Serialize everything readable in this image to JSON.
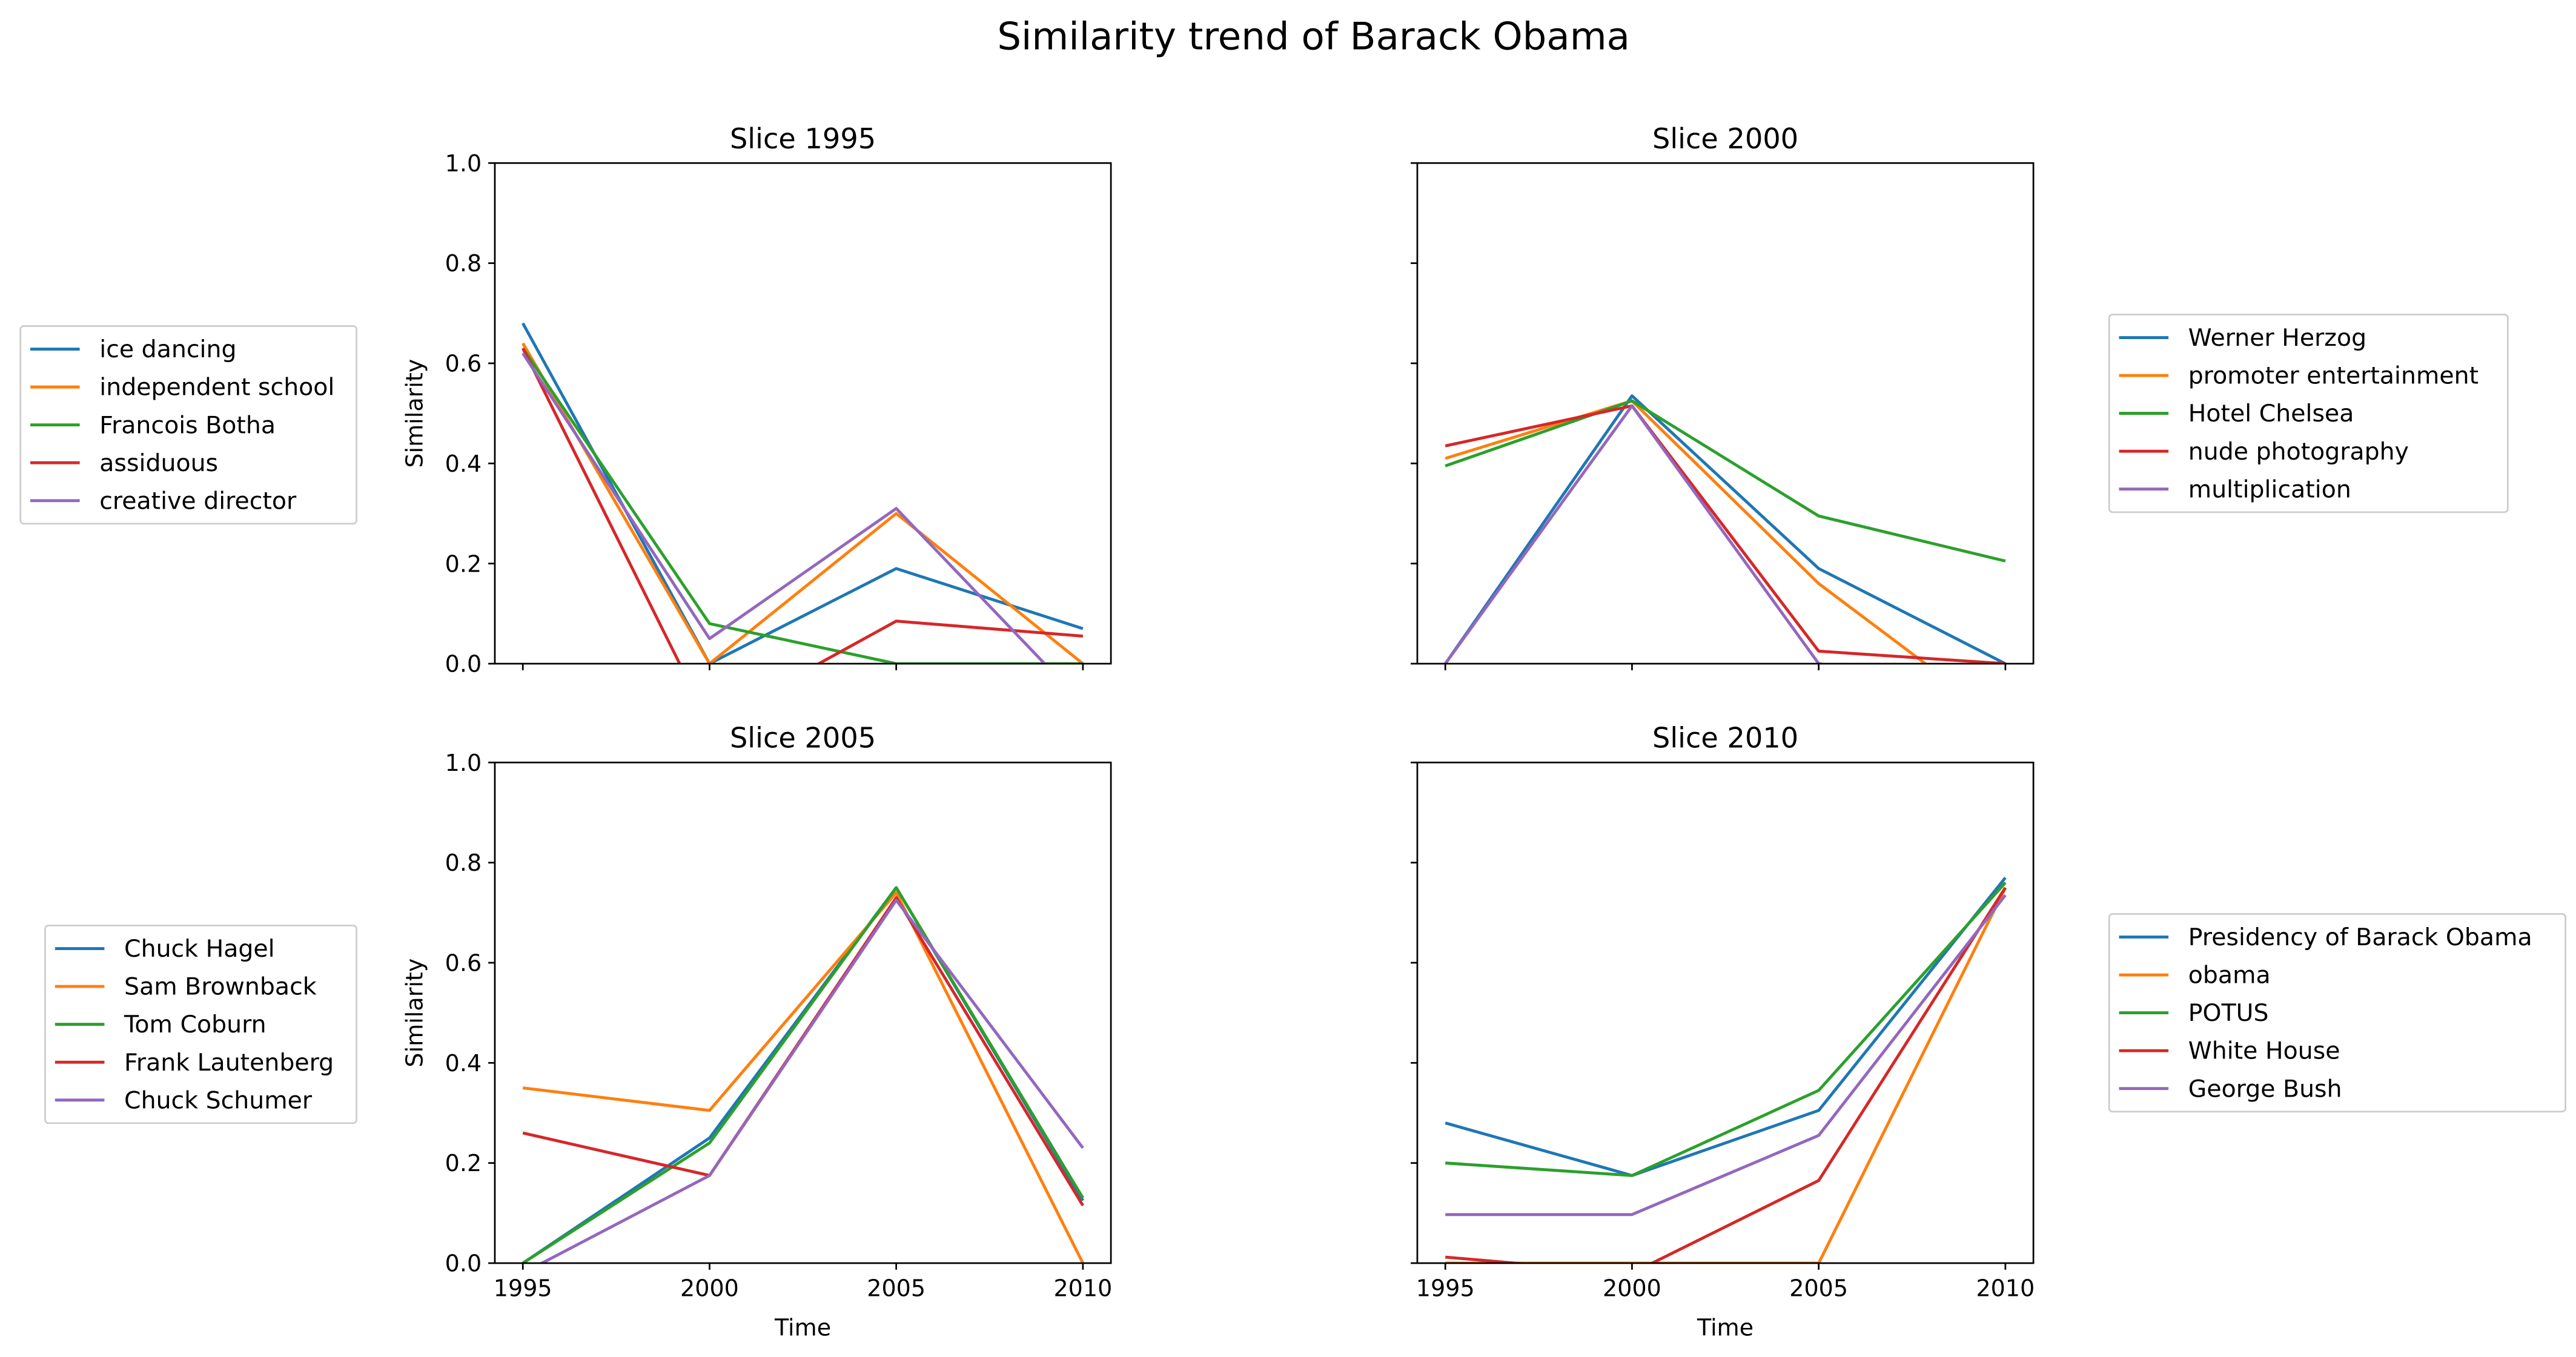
{
  "figure": {
    "title": "Similarity trend of Barack Obama"
  },
  "colors": [
    "#1f77b4",
    "#ff7f0e",
    "#2ca02c",
    "#d62728",
    "#9467bd"
  ],
  "chart_data": [
    {
      "type": "line",
      "title": "Slice 1995",
      "xlabel": "",
      "ylabel": "Similarity",
      "x": [
        1995,
        2000,
        2005,
        2010
      ],
      "x_ticks": [
        "1995",
        "2000",
        "2005",
        "2010"
      ],
      "ylim": [
        0,
        1
      ],
      "y_ticks": [
        "0.0",
        "0.2",
        "0.4",
        "0.6",
        "0.8",
        "1.0"
      ],
      "legend_position": "left",
      "series": [
        {
          "name": "ice dancing",
          "values": [
            0.68,
            0.0,
            0.19,
            0.07
          ]
        },
        {
          "name": "independent school",
          "values": [
            0.64,
            0.0,
            0.3,
            0.0
          ]
        },
        {
          "name": "Francois Botha",
          "values": [
            0.63,
            0.08,
            0.0,
            0.0
          ]
        },
        {
          "name": "assiduous",
          "values": [
            0.63,
            -0.12,
            0.085,
            0.055
          ]
        },
        {
          "name": "creative director",
          "values": [
            0.62,
            0.05,
            0.31,
            -0.08
          ]
        }
      ]
    },
    {
      "type": "line",
      "title": "Slice 2000",
      "xlabel": "",
      "ylabel": "",
      "x": [
        1995,
        2000,
        2005,
        2010
      ],
      "x_ticks": [
        "1995",
        "2000",
        "2005",
        "2010"
      ],
      "ylim": [
        0,
        1
      ],
      "y_ticks": [
        "0.0",
        "0.2",
        "0.4",
        "0.6",
        "0.8",
        "1.0"
      ],
      "legend_position": "right",
      "series": [
        {
          "name": "Werner Herzog",
          "values": [
            0.0,
            0.535,
            0.19,
            0.0
          ]
        },
        {
          "name": "promoter entertainment",
          "values": [
            0.41,
            0.525,
            0.16,
            -0.12
          ]
        },
        {
          "name": "Hotel Chelsea",
          "values": [
            0.395,
            0.525,
            0.295,
            0.205
          ]
        },
        {
          "name": "nude photography",
          "values": [
            0.435,
            0.515,
            0.025,
            0.0
          ]
        },
        {
          "name": "multiplication",
          "values": [
            0.0,
            0.515,
            0.0,
            -0.05
          ]
        }
      ]
    },
    {
      "type": "line",
      "title": "Slice 2005",
      "xlabel": "Time",
      "ylabel": "Similarity",
      "x": [
        1995,
        2000,
        2005,
        2010
      ],
      "x_ticks": [
        "1995",
        "2000",
        "2005",
        "2010"
      ],
      "ylim": [
        0,
        1
      ],
      "y_ticks": [
        "0.0",
        "0.2",
        "0.4",
        "0.6",
        "0.8",
        "1.0"
      ],
      "legend_position": "left",
      "series": [
        {
          "name": "Chuck Hagel",
          "values": [
            0.0,
            0.25,
            0.75,
            0.125
          ]
        },
        {
          "name": "Sam Brownback",
          "values": [
            0.35,
            0.305,
            0.74,
            0.0
          ]
        },
        {
          "name": "Tom Coburn",
          "values": [
            0.0,
            0.24,
            0.75,
            0.13
          ]
        },
        {
          "name": "Frank Lautenberg",
          "values": [
            0.26,
            0.175,
            0.73,
            0.115
          ]
        },
        {
          "name": "Chuck Schumer",
          "values": [
            -0.02,
            0.175,
            0.725,
            0.23
          ]
        }
      ]
    },
    {
      "type": "line",
      "title": "Slice 2010",
      "xlabel": "Time",
      "ylabel": "",
      "x": [
        1995,
        2000,
        2005,
        2010
      ],
      "x_ticks": [
        "1995",
        "2000",
        "2005",
        "2010"
      ],
      "ylim": [
        0,
        1
      ],
      "y_ticks": [
        "0.0",
        "0.2",
        "0.4",
        "0.6",
        "0.8",
        "1.0"
      ],
      "legend_position": "right",
      "series": [
        {
          "name": "Presidency of Barack Obama",
          "values": [
            0.28,
            0.175,
            0.305,
            0.77
          ]
        },
        {
          "name": "obama",
          "values": [
            0.0,
            0.0,
            0.0,
            0.75
          ]
        },
        {
          "name": "POTUS",
          "values": [
            0.2,
            0.175,
            0.345,
            0.76
          ]
        },
        {
          "name": "White House",
          "values": [
            0.012,
            -0.02,
            0.165,
            0.75
          ]
        },
        {
          "name": "George Bush",
          "values": [
            0.097,
            0.097,
            0.255,
            0.735
          ]
        }
      ]
    }
  ]
}
